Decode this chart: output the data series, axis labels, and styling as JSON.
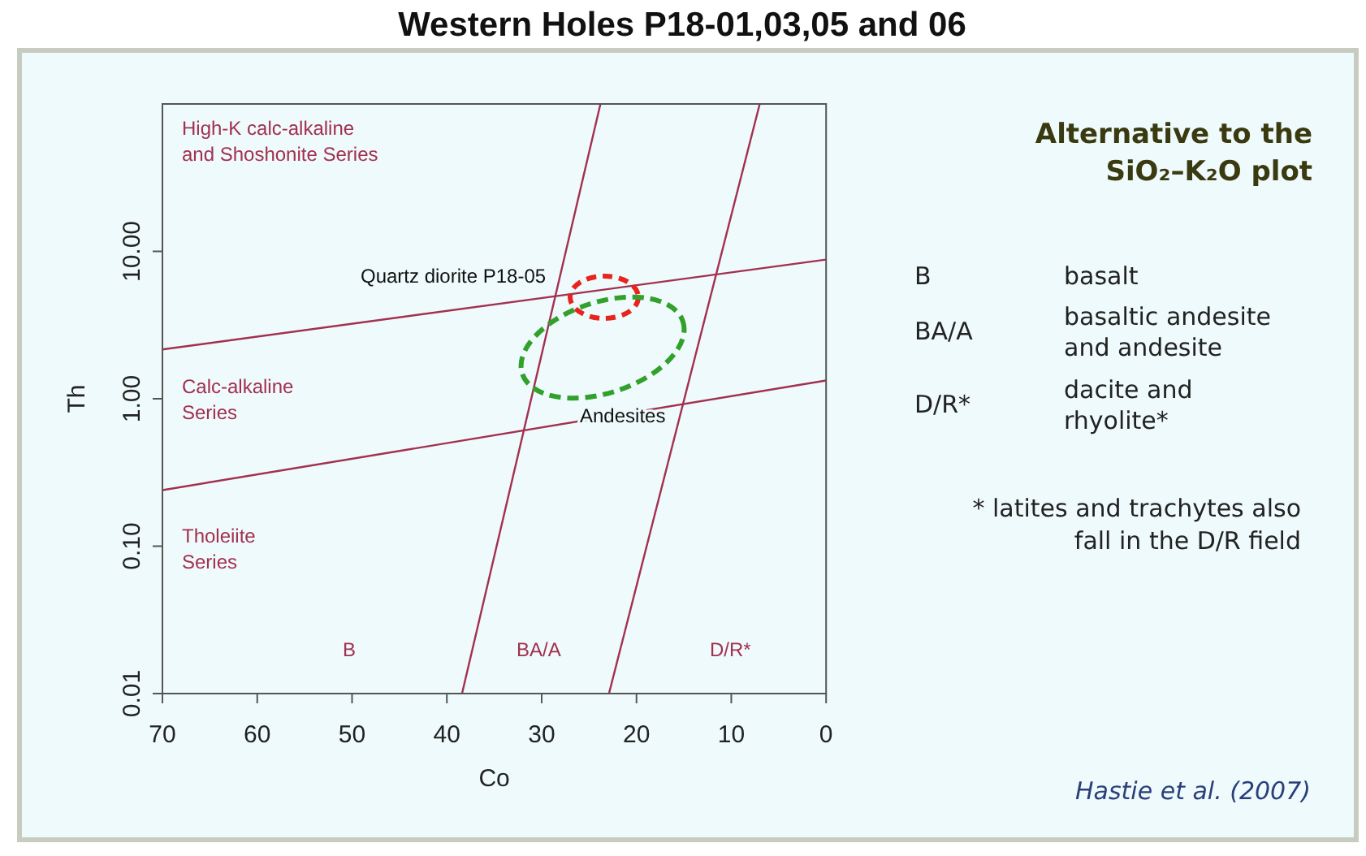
{
  "chart_data": {
    "type": "line",
    "title": "Western Holes P18-01,03,05 and 06",
    "subtitle": "Alternative to the\nSiO₂–K₂O plot",
    "xlabel": "Co",
    "ylabel": "Th",
    "series": [
      {
        "color": "#a3304f",
        "x": [
          70,
          0
        ],
        "values": [
          2.16,
          8.8
        ]
      },
      {
        "color": "#a3304f",
        "x": [
          70,
          0
        ],
        "values": [
          0.24,
          1.33
        ]
      },
      {
        "color": "#a3304f",
        "x": [
          38.4,
          23.8
        ],
        "values": [
          0.01,
          100
        ]
      },
      {
        "color": "#a3304f",
        "x": [
          22.9,
          7
        ],
        "values": [
          0.01,
          100
        ]
      }
    ],
    "xlim": [
      70,
      0
    ],
    "xticks": [
      70,
      60,
      50,
      40,
      30,
      20,
      10,
      0
    ],
    "ylim": [
      0.01,
      100
    ],
    "yticks": [
      {
        "value": 0.01,
        "label": "0.01"
      },
      {
        "value": 0.1,
        "label": "0.10"
      },
      {
        "value": 1,
        "label": "1.00"
      },
      {
        "value": 10,
        "label": "10.00"
      }
    ],
    "log": true,
    "grid": false,
    "marker": "none",
    "line_style": "solid",
    "annotations": [
      "High-K calc-alkaline\nand Shoshonite Series",
      "Calc-alkaline\nSeries",
      "Tholeiite\nSeries",
      "B",
      "BA/A",
      "D/R*",
      "Quartz diorite P18-05",
      "Andesites",
      "B",
      "basalt",
      "BA/A",
      "basaltic andesite\nand andesite",
      "D/R*",
      "dacite and\nrhyolite*",
      "* latites and trachytes also\nfall in the D/R field",
      "Hastie et al. (2007)"
    ]
  }
}
